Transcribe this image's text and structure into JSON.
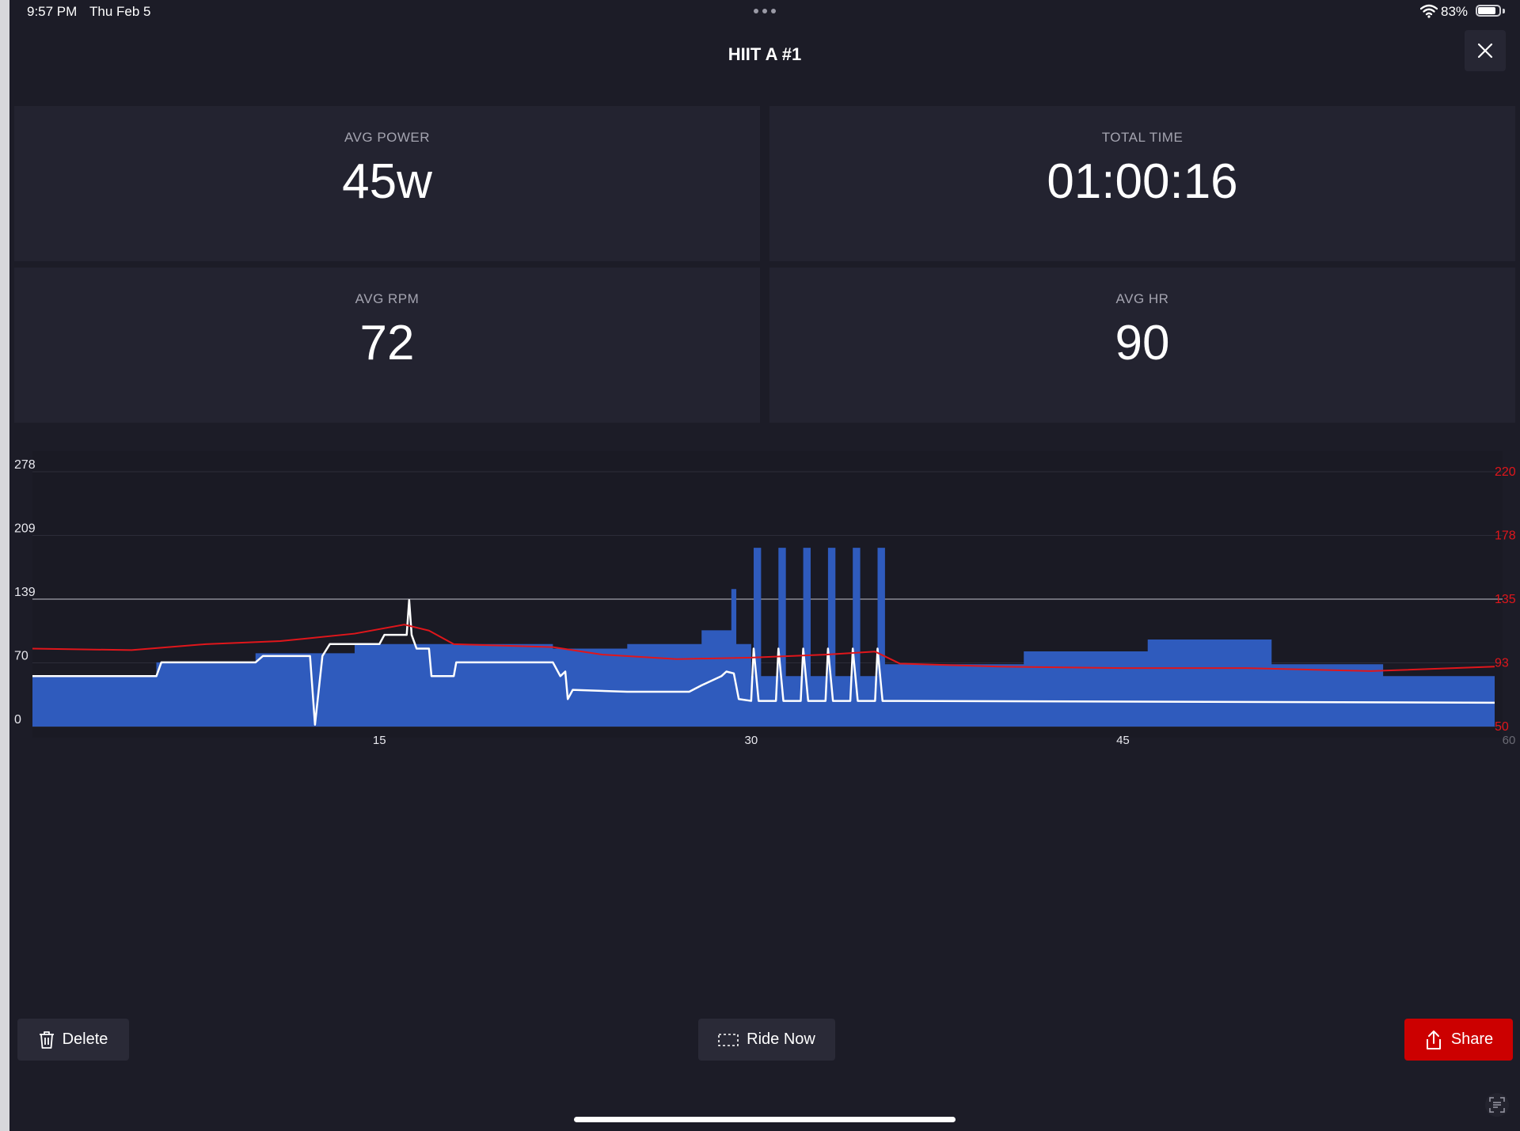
{
  "status": {
    "time": "9:57 PM",
    "date": "Thu Feb 5",
    "battery": "83%",
    "battery_level": 0.83
  },
  "title": "HIIT A #1",
  "stats": [
    {
      "label": "AVG POWER",
      "value": "45w"
    },
    {
      "label": "TOTAL TIME",
      "value": "01:00:16"
    },
    {
      "label": "AVG RPM",
      "value": "72"
    },
    {
      "label": "AVG HR",
      "value": "90"
    }
  ],
  "colors": {
    "power_fill": "#2f5bbd",
    "hr_line": "#e0161b",
    "rpm_line": "#ffffff",
    "share_button": "#cc0000",
    "background": "#1c1c27"
  },
  "chart_data": {
    "type": "area",
    "title": "",
    "xlabel": "",
    "x_ticks": [
      "15",
      "30",
      "45",
      "60"
    ],
    "xlim": [
      1,
      60
    ],
    "y_left_ticks": [
      "0",
      "70",
      "139",
      "209",
      "278"
    ],
    "ylim_left": [
      0,
      278
    ],
    "y_right_ticks": [
      "50",
      "93",
      "135",
      "178",
      "220"
    ],
    "ylim_right": [
      50,
      220
    ],
    "reference_line": 139,
    "series": [
      {
        "kind": "area",
        "axis": "left",
        "color": "#2f5bbd",
        "steps": [
          [
            1,
            55
          ],
          [
            6,
            70
          ],
          [
            10,
            80
          ],
          [
            14,
            90
          ],
          [
            22,
            85
          ],
          [
            25,
            90
          ],
          [
            28,
            105
          ],
          [
            29.2,
            150
          ],
          [
            29.4,
            90
          ],
          [
            30,
            55
          ],
          [
            30.1,
            195
          ],
          [
            30.4,
            55
          ],
          [
            31.1,
            195
          ],
          [
            31.4,
            55
          ],
          [
            32.1,
            195
          ],
          [
            32.4,
            55
          ],
          [
            33.1,
            195
          ],
          [
            33.4,
            55
          ],
          [
            34.1,
            195
          ],
          [
            34.4,
            55
          ],
          [
            35.1,
            195
          ],
          [
            35.4,
            68
          ],
          [
            41,
            82
          ],
          [
            46,
            95
          ],
          [
            51,
            68
          ],
          [
            55.5,
            55
          ],
          [
            60,
            55
          ]
        ]
      },
      {
        "kind": "line",
        "axis": "left",
        "color": "#ffffff",
        "points": [
          [
            1,
            55
          ],
          [
            6,
            55
          ],
          [
            6.2,
            70
          ],
          [
            10,
            70
          ],
          [
            10.3,
            77
          ],
          [
            12.2,
            77
          ],
          [
            12.4,
            2
          ],
          [
            12.7,
            77
          ],
          [
            13,
            90
          ],
          [
            15,
            90
          ],
          [
            15.2,
            100
          ],
          [
            16.1,
            100
          ],
          [
            16.2,
            138
          ],
          [
            16.3,
            100
          ],
          [
            16.5,
            85
          ],
          [
            17,
            85
          ],
          [
            17.1,
            55
          ],
          [
            18,
            55
          ],
          [
            18.1,
            70
          ],
          [
            22,
            70
          ],
          [
            22.3,
            55
          ],
          [
            22.5,
            60
          ],
          [
            22.6,
            30
          ],
          [
            22.8,
            40
          ],
          [
            25,
            38
          ],
          [
            27.5,
            38
          ],
          [
            28,
            45
          ],
          [
            28.8,
            55
          ],
          [
            29,
            60
          ],
          [
            29.3,
            58
          ],
          [
            29.5,
            30
          ],
          [
            30,
            28
          ],
          [
            30.1,
            85
          ],
          [
            30.3,
            28
          ],
          [
            31,
            28
          ],
          [
            31.1,
            85
          ],
          [
            31.3,
            28
          ],
          [
            32,
            28
          ],
          [
            32.1,
            85
          ],
          [
            32.3,
            28
          ],
          [
            33,
            28
          ],
          [
            33.1,
            85
          ],
          [
            33.3,
            28
          ],
          [
            34,
            28
          ],
          [
            34.1,
            85
          ],
          [
            34.3,
            28
          ],
          [
            35,
            28
          ],
          [
            35.1,
            85
          ],
          [
            35.3,
            28
          ],
          [
            36,
            28
          ],
          [
            60,
            26
          ]
        ]
      },
      {
        "kind": "line",
        "axis": "right",
        "color": "#e0161b",
        "points": [
          [
            1,
            102
          ],
          [
            5,
            101
          ],
          [
            8,
            105
          ],
          [
            11,
            107
          ],
          [
            14,
            112
          ],
          [
            16,
            118
          ],
          [
            17,
            114
          ],
          [
            18,
            105
          ],
          [
            22,
            103
          ],
          [
            24,
            98
          ],
          [
            27,
            95
          ],
          [
            30,
            96
          ],
          [
            33,
            98
          ],
          [
            35,
            100
          ],
          [
            36,
            92
          ],
          [
            40,
            90
          ],
          [
            45,
            89
          ],
          [
            50,
            89
          ],
          [
            55,
            87
          ],
          [
            60,
            90
          ]
        ]
      }
    ]
  },
  "buttons": {
    "delete": "Delete",
    "ride_now": "Ride Now",
    "share": "Share"
  }
}
